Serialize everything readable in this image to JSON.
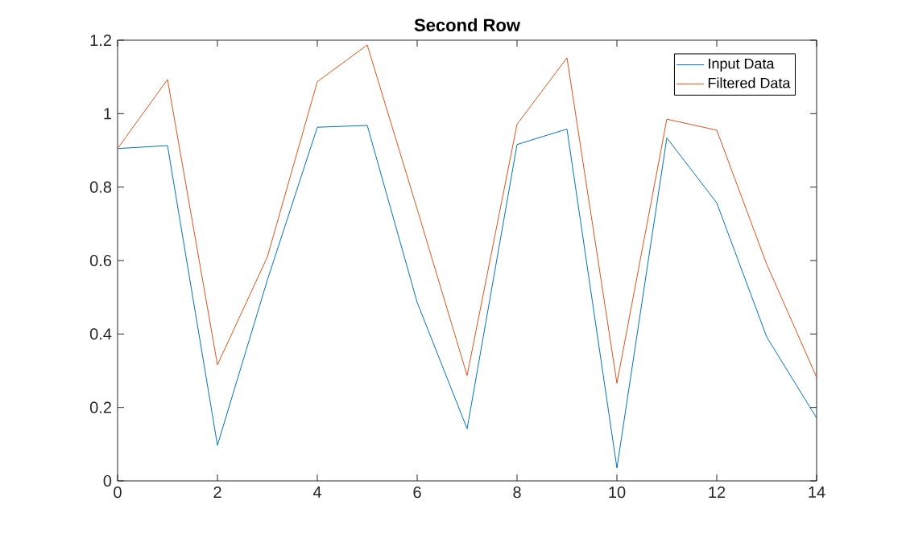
{
  "chart_data": {
    "type": "line",
    "title": "Second Row",
    "x": [
      0,
      1,
      2,
      3,
      4,
      5,
      6,
      7,
      8,
      9,
      10,
      11,
      12,
      13,
      14
    ],
    "series": [
      {
        "name": "Input Data",
        "color": "#0072bd",
        "values": [
          0.905,
          0.913,
          0.097,
          0.547,
          0.963,
          0.968,
          0.486,
          0.142,
          0.916,
          0.958,
          0.035,
          0.934,
          0.757,
          0.392,
          0.171
        ]
      },
      {
        "name": "Filtered Data",
        "color": "#d95319",
        "values": [
          0.905,
          1.093,
          0.316,
          0.61,
          1.087,
          1.187,
          0.74,
          0.287,
          0.971,
          1.152,
          0.266,
          0.985,
          0.955,
          0.59,
          0.282
        ]
      }
    ],
    "xlim": [
      0,
      14
    ],
    "ylim": [
      0,
      1.2
    ],
    "xticks": [
      0,
      2,
      4,
      6,
      8,
      10,
      12,
      14
    ],
    "yticks": [
      0,
      0.2,
      0.4,
      0.6,
      0.8,
      1,
      1.2
    ],
    "legend": "top right"
  }
}
